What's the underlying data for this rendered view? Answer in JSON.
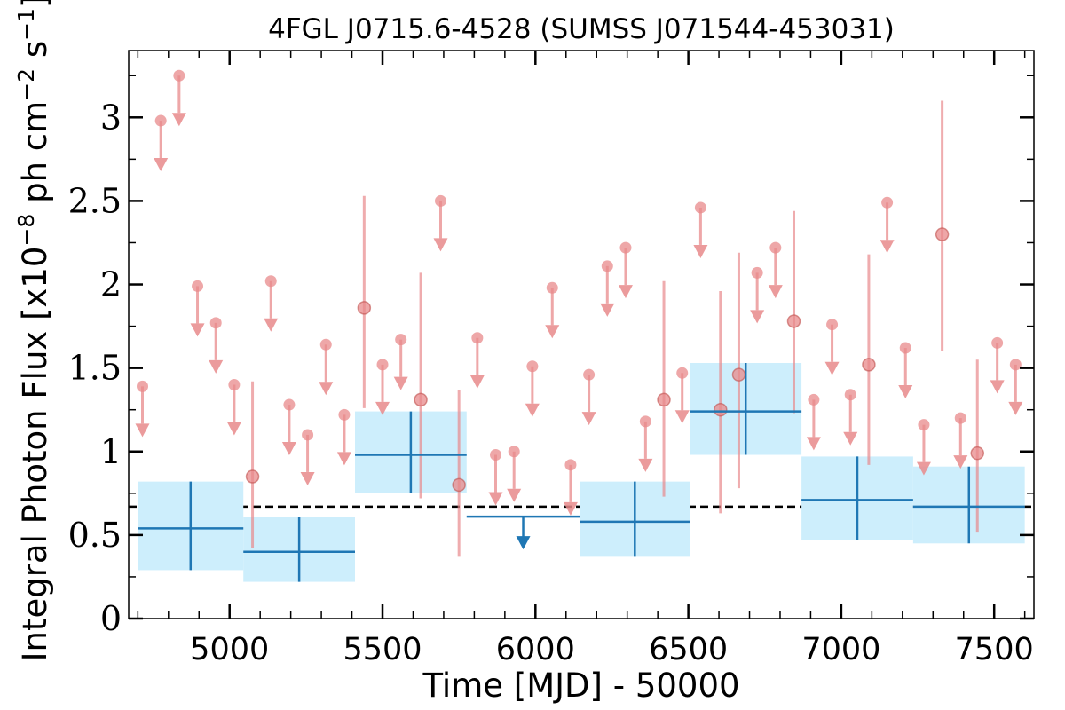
{
  "chart_data": {
    "type": "scatter",
    "title": "4FGL J0715.6-4528 (SUMSS J071544-453031)",
    "xlabel": "Time [MJD] - 50000",
    "ylabel_main": "Integral Photon Flux [x10",
    "ylabel_exp1": "−8",
    "ylabel_mid": " ph cm",
    "ylabel_exp2": "−2",
    "ylabel_mid2": " s",
    "ylabel_exp3": "−1",
    "ylabel_end": "]",
    "xlim": [
      4670,
      7630
    ],
    "ylim": [
      0,
      3.4
    ],
    "xticks": [
      5000,
      5500,
      6000,
      6500,
      7000,
      7500
    ],
    "xtick_labels": [
      "5000",
      "5500",
      "6000",
      "6500",
      "7000",
      "7500"
    ],
    "yticks": [
      0,
      0.5,
      1,
      1.5,
      2,
      2.5,
      3
    ],
    "ytick_labels": [
      "0",
      "0.5",
      "1",
      "1.5",
      "2",
      "2.5",
      "3"
    ],
    "reference_level": 0.67,
    "colors": {
      "short_bin": "#e8898b",
      "long_bin": "#1f77b4",
      "long_bin_band": "#cdeefc",
      "reference": "#000000"
    },
    "short_bin_detections": [
      {
        "x": 5075,
        "y": 0.85,
        "lo": 0.42,
        "hi": 1.42
      },
      {
        "x": 5440,
        "y": 1.86,
        "lo": 1.26,
        "hi": 2.53
      },
      {
        "x": 5625,
        "y": 1.31,
        "lo": 0.72,
        "hi": 2.07
      },
      {
        "x": 5750,
        "y": 0.8,
        "lo": 0.37,
        "hi": 1.37
      },
      {
        "x": 6420,
        "y": 1.31,
        "lo": 0.73,
        "hi": 2.02
      },
      {
        "x": 6605,
        "y": 1.25,
        "lo": 0.63,
        "hi": 1.96
      },
      {
        "x": 6665,
        "y": 1.46,
        "lo": 0.78,
        "hi": 2.19
      },
      {
        "x": 6845,
        "y": 1.78,
        "lo": 1.23,
        "hi": 2.44
      },
      {
        "x": 7090,
        "y": 1.52,
        "lo": 0.92,
        "hi": 2.18
      },
      {
        "x": 7330,
        "y": 2.3,
        "lo": 1.6,
        "hi": 3.1
      },
      {
        "x": 7445,
        "y": 0.99,
        "lo": 0.52,
        "hi": 1.55
      }
    ],
    "short_bin_upper_limits": [
      {
        "x": 4715,
        "y": 1.39
      },
      {
        "x": 4775,
        "y": 2.98
      },
      {
        "x": 4835,
        "y": 3.25
      },
      {
        "x": 4895,
        "y": 1.99
      },
      {
        "x": 4955,
        "y": 1.77
      },
      {
        "x": 5015,
        "y": 1.4
      },
      {
        "x": 5135,
        "y": 2.02
      },
      {
        "x": 5195,
        "y": 1.28
      },
      {
        "x": 5255,
        "y": 1.1
      },
      {
        "x": 5315,
        "y": 1.64
      },
      {
        "x": 5375,
        "y": 1.22
      },
      {
        "x": 5500,
        "y": 1.52
      },
      {
        "x": 5560,
        "y": 1.67
      },
      {
        "x": 5690,
        "y": 2.5
      },
      {
        "x": 5810,
        "y": 1.68
      },
      {
        "x": 5870,
        "y": 0.98
      },
      {
        "x": 5930,
        "y": 1.0
      },
      {
        "x": 5990,
        "y": 1.51
      },
      {
        "x": 6055,
        "y": 1.98
      },
      {
        "x": 6115,
        "y": 0.92
      },
      {
        "x": 6175,
        "y": 1.46
      },
      {
        "x": 6235,
        "y": 2.11
      },
      {
        "x": 6295,
        "y": 2.22
      },
      {
        "x": 6360,
        "y": 1.18
      },
      {
        "x": 6480,
        "y": 1.47
      },
      {
        "x": 6540,
        "y": 2.46
      },
      {
        "x": 6725,
        "y": 2.07
      },
      {
        "x": 6785,
        "y": 2.22
      },
      {
        "x": 6910,
        "y": 1.31
      },
      {
        "x": 6970,
        "y": 1.76
      },
      {
        "x": 7030,
        "y": 1.34
      },
      {
        "x": 7150,
        "y": 2.49
      },
      {
        "x": 7210,
        "y": 1.62
      },
      {
        "x": 7270,
        "y": 1.16
      },
      {
        "x": 7390,
        "y": 1.2
      },
      {
        "x": 7510,
        "y": 1.65
      },
      {
        "x": 7570,
        "y": 1.52
      }
    ],
    "long_bin_detections": [
      {
        "x0": 4700,
        "x1": 5045,
        "y": 0.54,
        "lo": 0.29,
        "hi": 0.82
      },
      {
        "x0": 5045,
        "x1": 5410,
        "y": 0.4,
        "lo": 0.22,
        "hi": 0.61
      },
      {
        "x0": 5410,
        "x1": 5775,
        "y": 0.98,
        "lo": 0.75,
        "hi": 1.24
      },
      {
        "x0": 6145,
        "x1": 6505,
        "y": 0.58,
        "lo": 0.37,
        "hi": 0.82
      },
      {
        "x0": 6505,
        "x1": 6870,
        "y": 1.24,
        "lo": 0.98,
        "hi": 1.53
      },
      {
        "x0": 6870,
        "x1": 7235,
        "y": 0.71,
        "lo": 0.47,
        "hi": 0.97
      },
      {
        "x0": 7235,
        "x1": 7600,
        "y": 0.67,
        "lo": 0.45,
        "hi": 0.91
      }
    ],
    "long_bin_upper_limits": [
      {
        "x0": 5775,
        "x1": 6145,
        "y": 0.61
      }
    ]
  }
}
